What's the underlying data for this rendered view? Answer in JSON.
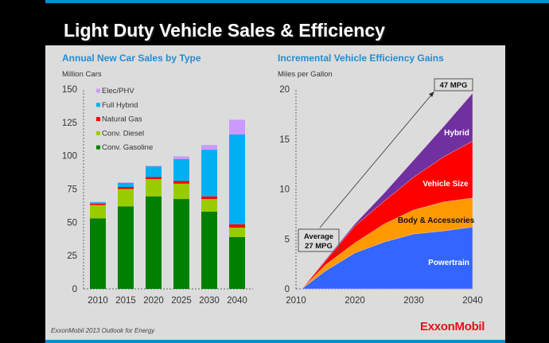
{
  "slide": {
    "title": "Light Duty Vehicle Sales & Efficiency",
    "source": "ExxonMobil 2013 Outlook for Energy",
    "logo_text": "ExxonMobil",
    "accent_color": "#0b8bd3",
    "logo_color": "#e8111a"
  },
  "chart_data": [
    {
      "type": "bar",
      "stacked": true,
      "title": "Annual New Car Sales by Type",
      "ylabel": "Million Cars",
      "xlabel": "",
      "ylim": [
        0,
        150
      ],
      "yticks": [
        "0",
        "25",
        "50",
        "75",
        "100",
        "125",
        "150"
      ],
      "categories": [
        "2010",
        "2015",
        "2020",
        "2025",
        "2030",
        "2040"
      ],
      "legend_position": "top-left",
      "series": [
        {
          "name": "Conv. Gasoline",
          "color": "#008000",
          "values": [
            53,
            62,
            69.5,
            67.5,
            58,
            39
          ]
        },
        {
          "name": "Conv. Diesel",
          "color": "#99cc00",
          "values": [
            10,
            13,
            13,
            11.5,
            9.5,
            7
          ]
        },
        {
          "name": "Natural Gas",
          "color": "#ff0000",
          "values": [
            1,
            1.5,
            1.5,
            2,
            2,
            2.5
          ]
        },
        {
          "name": "Full Hybrid",
          "color": "#00b0f0",
          "values": [
            1,
            3,
            8,
            16.5,
            35,
            67.5
          ]
        },
        {
          "name": "Elec/PHV",
          "color": "#cc99ff",
          "values": [
            0.5,
            0.5,
            0.5,
            2,
            3.5,
            11
          ]
        }
      ]
    },
    {
      "type": "area",
      "stacked": true,
      "title": "Incremental Vehicle Efficiency Gains",
      "ylabel": "Miles per Gallon",
      "xlabel": "",
      "xlim": [
        2010,
        2040
      ],
      "ylim": [
        0,
        20
      ],
      "xticks": [
        "2010",
        "2020",
        "2030",
        "2040"
      ],
      "yticks": [
        "0",
        "5",
        "10",
        "15",
        "20"
      ],
      "x": [
        2011,
        2015,
        2020,
        2025,
        2030,
        2035,
        2040
      ],
      "series": [
        {
          "name": "Powertrain",
          "color": "#3366ff",
          "label_color": "#ffffff",
          "values": [
            0,
            1.8,
            3.6,
            4.7,
            5.5,
            5.8,
            6.2
          ]
        },
        {
          "name": "Body & Accessories",
          "color": "#ff9900",
          "label_color": "#111111",
          "values": [
            0,
            0.6,
            1.0,
            1.8,
            2.4,
            2.9,
            2.9
          ]
        },
        {
          "name": "Vehicle Size",
          "color": "#ff0000",
          "label_color": "#ffffff",
          "values": [
            0,
            0.4,
            1.7,
            2.3,
            3.3,
            4.5,
            5.7
          ]
        },
        {
          "name": "Hybrid",
          "color": "#7030a0",
          "label_color": "#ffffff",
          "values": [
            0,
            0.1,
            0.2,
            0.8,
            1.7,
            3.0,
            4.8
          ]
        }
      ],
      "annotations": {
        "start": [
          "Average",
          "27 MPG"
        ],
        "end": "47 MPG"
      }
    }
  ]
}
